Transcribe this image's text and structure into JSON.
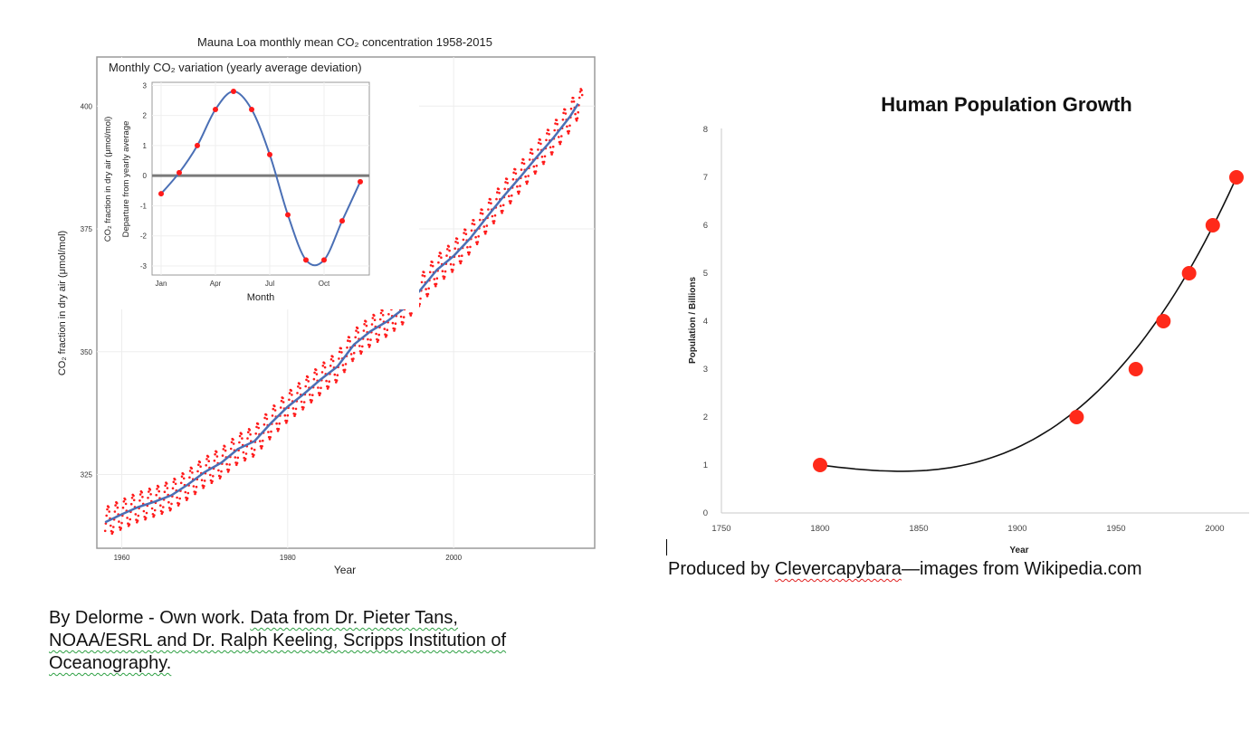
{
  "chart_data": [
    {
      "type": "line",
      "title": "Mauna Loa monthly mean CO₂ concentration 1958-2015",
      "xlabel": "Year",
      "ylabel": "CO₂ fraction in dry air (μmol/mol)",
      "xlim": [
        1957,
        2017
      ],
      "ylim": [
        310,
        410
      ],
      "x_ticks": [
        "1960",
        "1980",
        "2000"
      ],
      "y_ticks": [
        "325",
        "350",
        "375",
        "400"
      ],
      "grid": true,
      "series": [
        {
          "color": "#4a6fb5",
          "style": "smoothed trend line",
          "x": [
            1958,
            1960,
            1962,
            1964,
            1966,
            1968,
            1970,
            1972,
            1974,
            1976,
            1978,
            1980,
            1982,
            1984,
            1986,
            1988,
            1990,
            1992,
            1994,
            1996,
            1998,
            2000,
            2002,
            2004,
            2006,
            2008,
            2010,
            2012,
            2014,
            2015
          ],
          "values": [
            315.3,
            316.9,
            318.4,
            319.5,
            320.8,
            323.0,
            325.5,
            327.4,
            330.2,
            331.8,
            335.5,
            338.8,
            341.5,
            344.4,
            347.0,
            351.5,
            354.2,
            356.2,
            358.8,
            362.6,
            366.7,
            369.5,
            373.1,
            377.4,
            381.6,
            385.5,
            389.6,
            393.5,
            397.8,
            400.5
          ]
        },
        {
          "color": "#ff1a1a",
          "style": "monthly values (dotted, seasonal cycle)",
          "seasonal_amplitude": 3
        }
      ]
    },
    {
      "type": "line",
      "title": "Monthly CO₂ variation (yearly average deviation)",
      "xlabel": "Month",
      "ylabel": "CO₂ fraction in dry air (μmol/mol) Departure from yearly average",
      "ylim": [
        -3.3,
        3.1
      ],
      "x_ticks": [
        "Jan",
        "Apr",
        "Jul",
        "Oct"
      ],
      "y_ticks": [
        "-3",
        "-2",
        "-1",
        "0",
        "1",
        "2",
        "3"
      ],
      "x": [
        1,
        2,
        3,
        4,
        5,
        6,
        7,
        8,
        9,
        10,
        11,
        12
      ],
      "values": [
        -0.6,
        0.1,
        1.0,
        2.2,
        2.8,
        2.2,
        0.7,
        -1.3,
        -2.8,
        -2.8,
        -1.5,
        -0.2
      ],
      "point_color": "#ff1a1a",
      "line_color": "#4a6fb5"
    },
    {
      "type": "scatter",
      "title": "Human Population Growth",
      "xlabel": "Year",
      "ylabel": "Population / Billions",
      "xlim": [
        1750,
        2025
      ],
      "ylim": [
        0,
        8
      ],
      "x_ticks": [
        "1750",
        "1800",
        "1850",
        "1900",
        "1950",
        "2000"
      ],
      "y_ticks": [
        "0",
        "1",
        "2",
        "3",
        "4",
        "5",
        "6",
        "7",
        "8"
      ],
      "x": [
        1800,
        1930,
        1960,
        1974,
        1987,
        1999,
        2011
      ],
      "values": [
        1,
        2,
        3,
        4,
        5,
        6,
        7
      ],
      "point_color": "#ff2a1a",
      "trendline": "polynomial"
    }
  ],
  "captions": {
    "co2_prefix": "By Delorme - Own work. ",
    "co2_link1": "Data from Dr. Pieter Tans,",
    "co2_link2": "NOAA/ESRL and Dr. Ralph Keeling, Scripps Institution of",
    "co2_link3": "Oceanography.",
    "pop_prefix": "Produced by ",
    "pop_name": "Clevercapybara",
    "pop_suffix": "—images from Wikipedia.com"
  }
}
